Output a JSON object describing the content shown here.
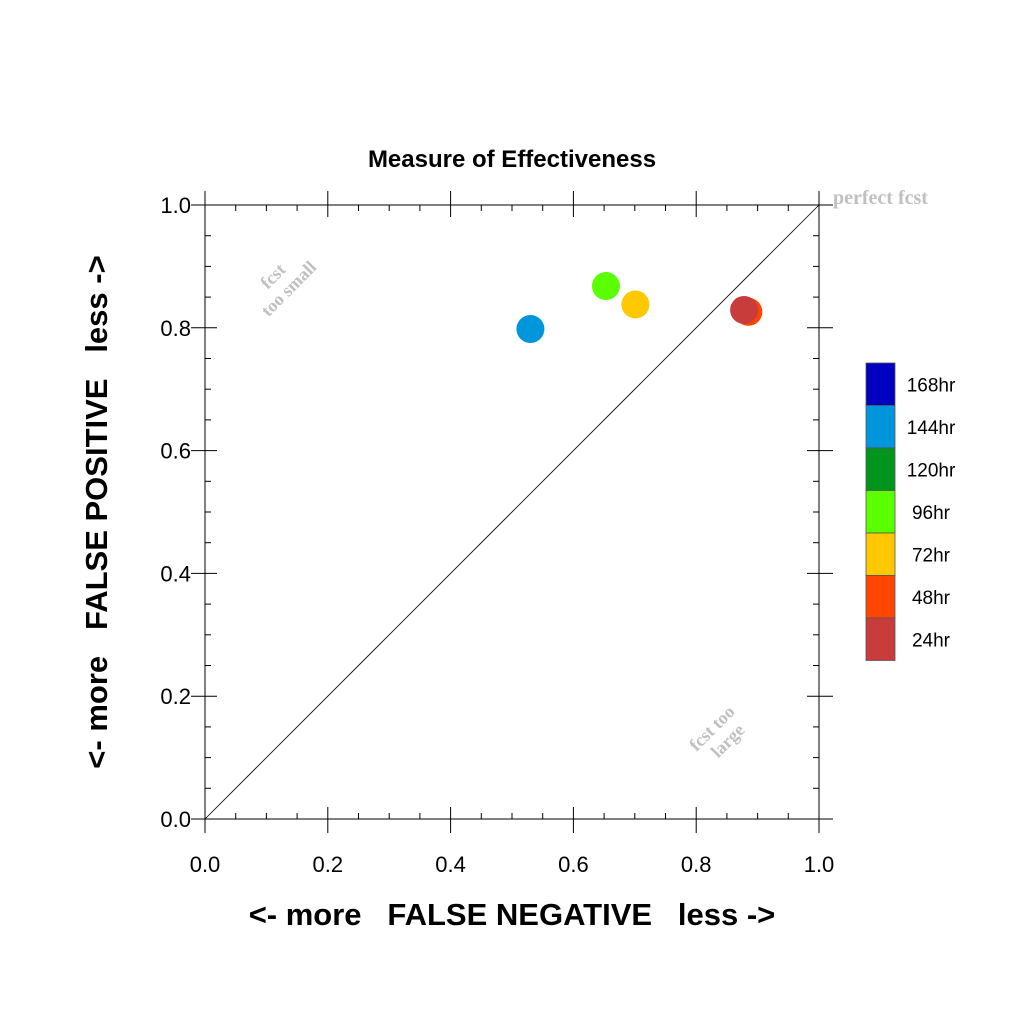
{
  "chart_data": {
    "type": "scatter",
    "title": "Measure of Effectiveness",
    "xlabel": "<- more   FALSE NEGATIVE   less ->",
    "ylabel": "<- more   FALSE POSITIVE   less ->",
    "xlim": [
      0.0,
      1.0
    ],
    "ylim": [
      0.0,
      1.0
    ],
    "xticks": [
      "0.0",
      "0.2",
      "0.4",
      "0.6",
      "0.8",
      "1.0"
    ],
    "yticks": [
      "0.0",
      "0.2",
      "0.4",
      "0.6",
      "0.8",
      "1.0"
    ],
    "xtick_values": [
      0.0,
      0.2,
      0.4,
      0.6,
      0.8,
      1.0
    ],
    "ytick_values": [
      0.0,
      0.2,
      0.4,
      0.6,
      0.8,
      1.0
    ],
    "grid": false,
    "legend_position": "right",
    "annotations": {
      "perfect": "perfect fcst",
      "too_small": [
        "fcst",
        "too small"
      ],
      "too_large": [
        "fcst too",
        "large"
      ]
    },
    "series": [
      {
        "name": "168hr",
        "color": "#0000c0",
        "points": []
      },
      {
        "name": "144hr",
        "color": "#0096dc",
        "points": [
          [
            0.53,
            0.798
          ]
        ]
      },
      {
        "name": "120hr",
        "color": "#00961e",
        "points": []
      },
      {
        "name": "96hr",
        "color": "#5aff00",
        "points": [
          [
            0.653,
            0.868
          ]
        ]
      },
      {
        "name": "72hr",
        "color": "#ffc800",
        "points": [
          [
            0.701,
            0.838
          ]
        ]
      },
      {
        "name": "48hr",
        "color": "#ff4600",
        "points": [
          [
            0.885,
            0.826
          ]
        ]
      },
      {
        "name": "24hr",
        "color": "#c83c3c",
        "points": [
          [
            0.878,
            0.829
          ]
        ]
      }
    ]
  }
}
